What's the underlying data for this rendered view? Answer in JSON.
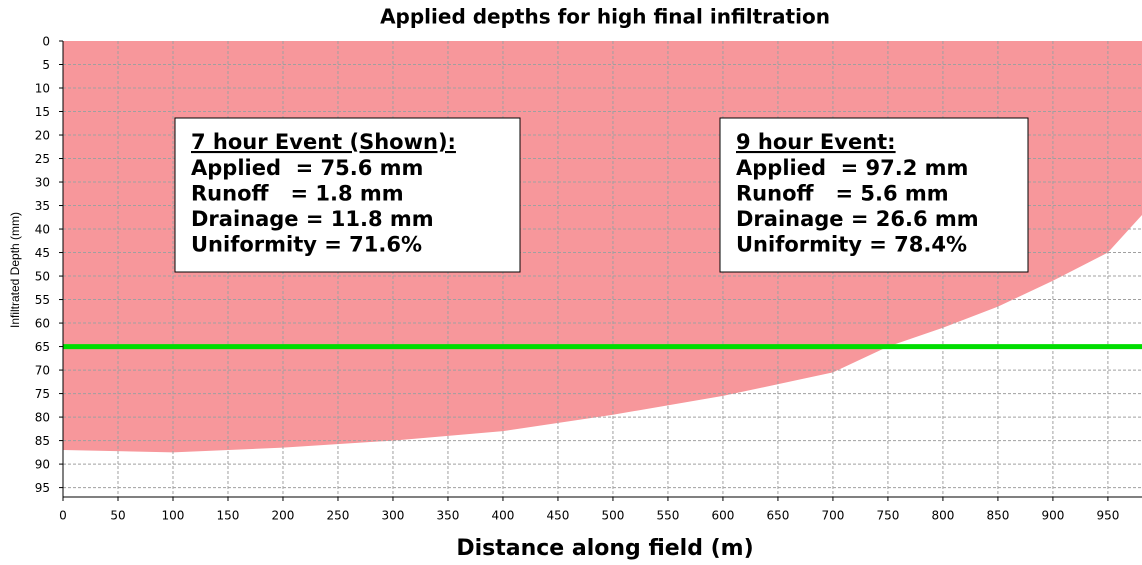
{
  "chart_data": {
    "type": "area",
    "title": "Applied depths for high final infiltration",
    "x_label": "Distance along field (m)",
    "y_label": "Infiltrated Depth (mm)",
    "x": [
      0,
      100,
      200,
      300,
      400,
      500,
      600,
      700,
      750,
      800,
      850,
      900,
      950,
      981
    ],
    "series": [
      {
        "color": "#f7979b",
        "values": [
          87,
          87.5,
          86.5,
          85,
          83,
          79.5,
          75.5,
          70.5,
          65,
          61,
          56.5,
          51,
          45,
          37
        ]
      }
    ],
    "reference_line": {
      "value": 65,
      "color": "#00dd00"
    },
    "xlim": [
      0,
      981
    ],
    "ylim": [
      0,
      97
    ],
    "inverted_y": true,
    "grid": true,
    "xticks": [
      0,
      50,
      100,
      150,
      200,
      250,
      300,
      350,
      400,
      450,
      500,
      550,
      600,
      650,
      700,
      750,
      800,
      850,
      900,
      950
    ],
    "yticks": [
      0,
      5,
      10,
      15,
      20,
      25,
      30,
      35,
      40,
      45,
      50,
      55,
      60,
      65,
      70,
      75,
      80,
      85,
      90,
      95
    ],
    "annotations": [
      {
        "title": "7 hour Event (Shown):",
        "lines": [
          "Applied  = 75.6 mm",
          "Runoff   = 1.8 mm",
          "Drainage = 11.8 mm",
          "Uniformity = 71.6%"
        ]
      },
      {
        "title": "9 hour Event:",
        "lines": [
          "Applied  = 97.2 mm",
          "Runoff   = 5.6 mm",
          "Drainage = 26.6 mm",
          "Uniformity = 78.4%"
        ]
      }
    ]
  }
}
